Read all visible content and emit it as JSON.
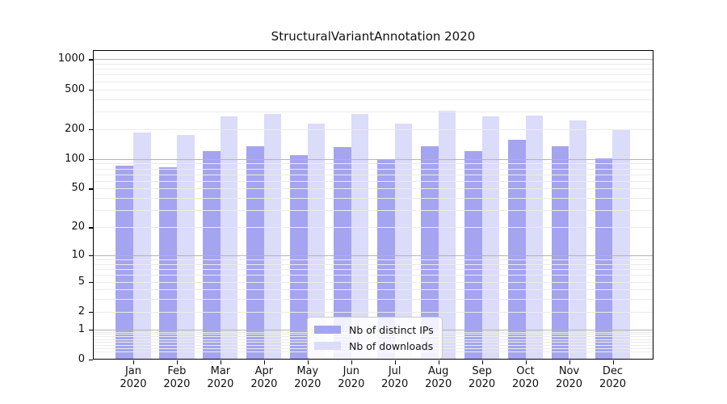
{
  "chart_data": {
    "type": "bar",
    "title": "StructuralVariantAnnotation 2020",
    "categories": [
      "Jan",
      "Feb",
      "Mar",
      "Apr",
      "May",
      "Jun",
      "Jul",
      "Aug",
      "Sep",
      "Oct",
      "Nov",
      "Dec"
    ],
    "x_year_label": "2020",
    "series": [
      {
        "name": "Nb of distinct IPs",
        "color": "#a4a4f0",
        "values": [
          85,
          82,
          119,
          134,
          110,
          131,
          100,
          135,
          119,
          157,
          134,
          101
        ]
      },
      {
        "name": "Nb of downloads",
        "color": "#dbdbfa",
        "values": [
          186,
          176,
          270,
          283,
          228,
          285,
          225,
          303,
          269,
          274,
          243,
          195
        ]
      }
    ],
    "yscale": "log10(1+v)",
    "y_ticks": [
      0,
      1,
      2,
      5,
      10,
      20,
      50,
      100,
      200,
      500,
      1000
    ],
    "ylim": [
      0,
      1000
    ],
    "grid": "on",
    "grid_major_color": "#b4b4b4",
    "grid_minor_color": "#ebebeb",
    "legend_position": "bottom-center",
    "legend_labels": [
      "Nb of distinct IPs",
      "Nb of downloads"
    ]
  }
}
